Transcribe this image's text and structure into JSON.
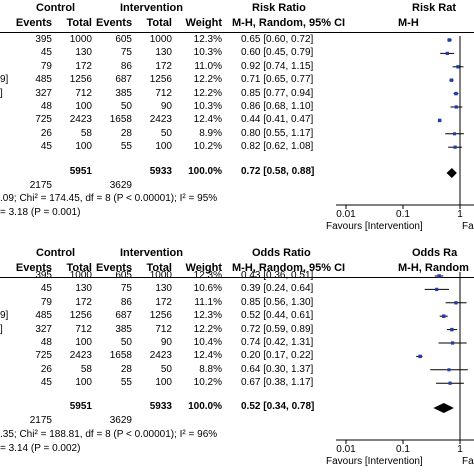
{
  "panels": [
    {
      "header": {
        "group1": "Control",
        "group2": "Intervention",
        "measure": "Risk Ratio",
        "measure_right": "Risk Rat",
        "col_events1": "Events",
        "col_total1": "Total",
        "col_events2": "Events",
        "col_total2": "Total",
        "col_weight": "Weight",
        "method": "M-H, Random, 95% CI",
        "method_right": "M-H"
      },
      "rows": [
        {
          "left_frag": "",
          "e1": "395",
          "t1": "1000",
          "e2": "605",
          "t2": "1000",
          "w": "12.3%",
          "est": "0.65 [0.60, 0.72]"
        },
        {
          "left_frag": "",
          "e1": "45",
          "t1": "130",
          "e2": "75",
          "t2": "130",
          "w": "10.3%",
          "est": "0.60 [0.45, 0.79]"
        },
        {
          "left_frag": "",
          "e1": "79",
          "t1": "172",
          "e2": "86",
          "t2": "172",
          "w": "11.0%",
          "est": "0.92 [0.74, 1.15]"
        },
        {
          "left_frag": "9]",
          "e1": "485",
          "t1": "1256",
          "e2": "687",
          "t2": "1256",
          "w": "12.2%",
          "est": "0.71 [0.65, 0.77]"
        },
        {
          "left_frag": "]",
          "e1": "327",
          "t1": "712",
          "e2": "385",
          "t2": "712",
          "w": "12.2%",
          "est": "0.85 [0.77, 0.94]"
        },
        {
          "left_frag": "",
          "e1": "48",
          "t1": "100",
          "e2": "50",
          "t2": "90",
          "w": "10.3%",
          "est": "0.86 [0.68, 1.10]"
        },
        {
          "left_frag": "",
          "e1": "725",
          "t1": "2423",
          "e2": "1658",
          "t2": "2423",
          "w": "12.4%",
          "est": "0.44 [0.41, 0.47]"
        },
        {
          "left_frag": "",
          "e1": "26",
          "t1": "58",
          "e2": "28",
          "t2": "50",
          "w": "8.9%",
          "est": "0.80 [0.55, 1.17]"
        },
        {
          "left_frag": "",
          "e1": "45",
          "t1": "100",
          "e2": "55",
          "t2": "100",
          "w": "10.2%",
          "est": "0.82 [0.62, 1.08]"
        }
      ],
      "total": {
        "t1": "5951",
        "t2": "5933",
        "w": "100.0%",
        "est": "0.72 [0.58, 0.88]"
      },
      "events": {
        "e1": "2175",
        "e2": "3629"
      },
      "het": ".09; Chi² = 174.45, df = 8 (P < 0.00001); I² = 95%",
      "zline": "= 3.18 (P = 0.001)",
      "axis_ticks": [
        "0.01",
        "0.1",
        "1"
      ],
      "favours": "Favours [Intervention]",
      "favours_right": "Fa"
    },
    {
      "header": {
        "group1": "Control",
        "group2": "Intervention",
        "measure": "Odds Ratio",
        "measure_right": "Odds Ra",
        "col_events1": "Events",
        "col_total1": "Total",
        "col_events2": "Events",
        "col_total2": "Total",
        "col_weight": "Weight",
        "method": "M-H, Random, 95% CI",
        "method_right": "M-H, Random"
      },
      "rows": [
        {
          "left_frag": "",
          "e1": "395",
          "t1": "1000",
          "e2": "605",
          "t2": "1000",
          "w": "12.3%",
          "est": "0.43 [0.36, 0.51]"
        },
        {
          "left_frag": "",
          "e1": "45",
          "t1": "130",
          "e2": "75",
          "t2": "130",
          "w": "10.6%",
          "est": "0.39 [0.24, 0.64]"
        },
        {
          "left_frag": "",
          "e1": "79",
          "t1": "172",
          "e2": "86",
          "t2": "172",
          "w": "11.1%",
          "est": "0.85 [0.56, 1.30]"
        },
        {
          "left_frag": "9]",
          "e1": "485",
          "t1": "1256",
          "e2": "687",
          "t2": "1256",
          "w": "12.3%",
          "est": "0.52 [0.44, 0.61]"
        },
        {
          "left_frag": "]",
          "e1": "327",
          "t1": "712",
          "e2": "385",
          "t2": "712",
          "w": "12.2%",
          "est": "0.72 [0.59, 0.89]"
        },
        {
          "left_frag": "",
          "e1": "48",
          "t1": "100",
          "e2": "50",
          "t2": "90",
          "w": "10.4%",
          "est": "0.74 [0.42, 1.31]"
        },
        {
          "left_frag": "",
          "e1": "725",
          "t1": "2423",
          "e2": "1658",
          "t2": "2423",
          "w": "12.4%",
          "est": "0.20 [0.17, 0.22]"
        },
        {
          "left_frag": "",
          "e1": "26",
          "t1": "58",
          "e2": "28",
          "t2": "50",
          "w": "8.8%",
          "est": "0.64 [0.30, 1.37]"
        },
        {
          "left_frag": "",
          "e1": "45",
          "t1": "100",
          "e2": "55",
          "t2": "100",
          "w": "10.2%",
          "est": "0.67 [0.38, 1.17]"
        }
      ],
      "total": {
        "t1": "5951",
        "t2": "5933",
        "w": "100.0%",
        "est": "0.52 [0.34, 0.78]"
      },
      "events": {
        "e1": "2175",
        "e2": "3629"
      },
      "het": ".35; Chi² = 188.81, df = 8 (P < 0.00001); I² = 96%",
      "zline": "= 3.14 (P = 0.002)",
      "axis_ticks": [
        "0.01",
        "0.1",
        "1"
      ],
      "favours": "Favours [Intervention]",
      "favours_right": "Fa"
    }
  ],
  "chart_data": [
    {
      "type": "forest",
      "measure": "Risk Ratio",
      "scale": "log",
      "axis_ticks": [
        0.01,
        0.1,
        1
      ],
      "study_estimates": [
        0.65,
        0.6,
        0.92,
        0.71,
        0.85,
        0.86,
        0.44,
        0.8,
        0.82
      ],
      "ci_low": [
        0.6,
        0.45,
        0.74,
        0.65,
        0.77,
        0.68,
        0.41,
        0.55,
        0.62
      ],
      "ci_high": [
        0.72,
        0.79,
        1.15,
        0.77,
        0.94,
        1.1,
        0.47,
        1.17,
        1.08
      ],
      "weights": [
        12.3,
        10.3,
        11.0,
        12.2,
        12.2,
        10.3,
        12.4,
        8.9,
        10.2
      ],
      "pooled": {
        "estimate": 0.72,
        "low": 0.58,
        "high": 0.88
      },
      "marker_color": "#1f3ea8"
    },
    {
      "type": "forest",
      "measure": "Odds Ratio",
      "scale": "log",
      "axis_ticks": [
        0.01,
        0.1,
        1
      ],
      "study_estimates": [
        0.43,
        0.39,
        0.85,
        0.52,
        0.72,
        0.74,
        0.2,
        0.64,
        0.67
      ],
      "ci_low": [
        0.36,
        0.24,
        0.56,
        0.44,
        0.59,
        0.42,
        0.17,
        0.3,
        0.38
      ],
      "ci_high": [
        0.51,
        0.64,
        1.3,
        0.61,
        0.89,
        1.31,
        0.22,
        1.37,
        1.17
      ],
      "weights": [
        12.3,
        10.6,
        11.1,
        12.3,
        12.2,
        10.4,
        12.4,
        8.8,
        10.2
      ],
      "pooled": {
        "estimate": 0.52,
        "low": 0.34,
        "high": 0.78
      },
      "marker_color": "#1f3ea8"
    }
  ]
}
